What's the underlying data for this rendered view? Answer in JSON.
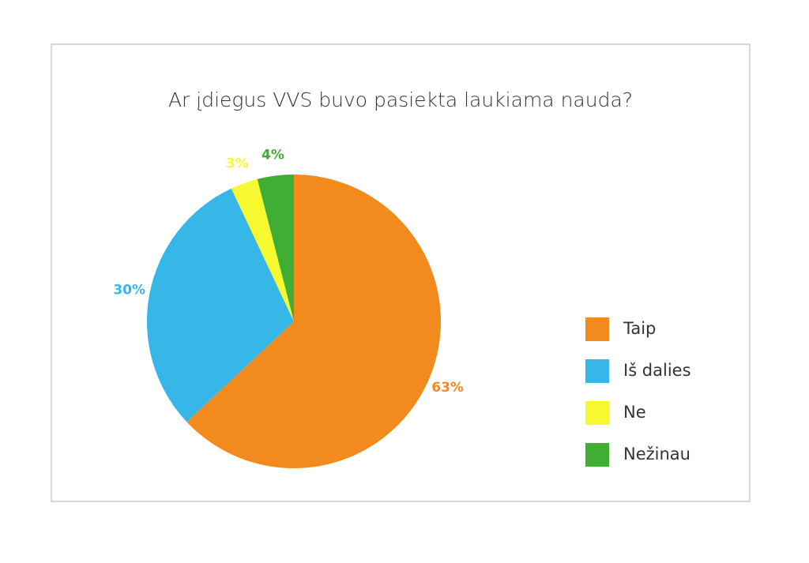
{
  "chart_data": {
    "type": "pie",
    "title": "Ar įdiegus VVS buvo pasiekta laukiama nauda?",
    "categories": [
      "Taip",
      "Iš dalies",
      "Ne",
      "Nežinau"
    ],
    "values": [
      63,
      30,
      3,
      4
    ],
    "value_labels": [
      "63%",
      "30%",
      "3%",
      "4%"
    ],
    "colors": [
      "#f28a1e",
      "#36b7e8",
      "#f6f930",
      "#40ad33"
    ],
    "legend": "right"
  }
}
